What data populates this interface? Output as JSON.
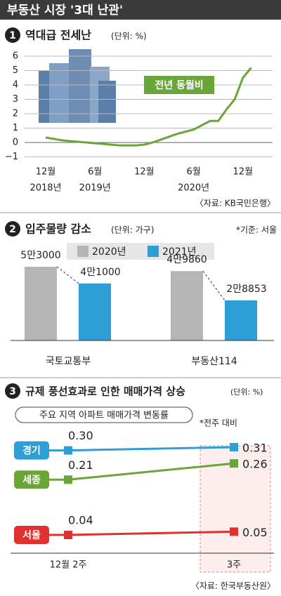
{
  "title": "부동산 시장 '3대 난관'",
  "chart_data": [
    {
      "type": "line",
      "number": "1",
      "title": "역대급 전세난",
      "unit": "(단위: %)",
      "source": "〈자료: KB국민은행〉",
      "categories": [
        "12월",
        null,
        null,
        null,
        null,
        null,
        "6월",
        null,
        null,
        null,
        null,
        null,
        "12월",
        null,
        null,
        null,
        null,
        null,
        "6월",
        null,
        null,
        null,
        null,
        null,
        "12월",
        null
      ],
      "x_years": [
        "2018년",
        null,
        null,
        null,
        null,
        null,
        "2019년",
        null,
        null,
        null,
        null,
        null,
        null,
        null,
        null,
        null,
        null,
        null,
        "2020년",
        null,
        null,
        null,
        null,
        null,
        null,
        null
      ],
      "series": [
        {
          "name": "전년 동월비",
          "color": "#6aa53a",
          "values": [
            0.35,
            0.25,
            0.15,
            0.1,
            0.05,
            0,
            -0.05,
            -0.1,
            -0.15,
            -0.2,
            -0.2,
            -0.2,
            -0.15,
            0,
            0.2,
            0.4,
            0.6,
            0.75,
            0.9,
            1.2,
            1.5,
            1.5,
            2.3,
            3.0,
            4.5,
            5.2
          ]
        }
      ],
      "ylim": [
        -1,
        6
      ],
      "yticks": [
        {
          "value": -1,
          "label": "−1"
        },
        0,
        1,
        2,
        3,
        4,
        5,
        6
      ],
      "grid": true
    },
    {
      "type": "bar",
      "number": "2",
      "title": "입주물량 감소",
      "unit": "(단위: 가구)",
      "note": "*기준: 서울",
      "categories": [
        "국토교통부",
        "부동산114"
      ],
      "series": [
        {
          "name": "2020년",
          "color": "#b5b5b5",
          "values": [
            53000,
            49860
          ],
          "value_labels": [
            "5만3000",
            "4만9860"
          ]
        },
        {
          "name": "2021년",
          "color": "#2e9fd6",
          "values": [
            41000,
            28853
          ],
          "value_labels": [
            "4만1000",
            "2만8853"
          ]
        }
      ]
    },
    {
      "type": "line",
      "number": "3",
      "title": "규제 풍선효과로 인한 매매가격 상승",
      "unit": "(단위: %)",
      "subtitle": "주요 지역 아파트 매매가격 변동률",
      "note": "*전주 대비",
      "source": "〈자료: 한국부동산원〉",
      "categories": [
        "12월 2주",
        "3주"
      ],
      "series": [
        {
          "name": "경기",
          "color": "#2e9fd6",
          "values": [
            0.3,
            0.31
          ],
          "value_labels": [
            "0.30",
            "0.31"
          ]
        },
        {
          "name": "세종",
          "color": "#6aa53a",
          "values": [
            0.21,
            0.26
          ],
          "value_labels": [
            "0.21",
            "0.26"
          ]
        },
        {
          "name": "서울",
          "color": "#e03030",
          "values": [
            0.04,
            0.05
          ],
          "value_labels": [
            "0.04",
            "0.05"
          ]
        }
      ]
    }
  ]
}
